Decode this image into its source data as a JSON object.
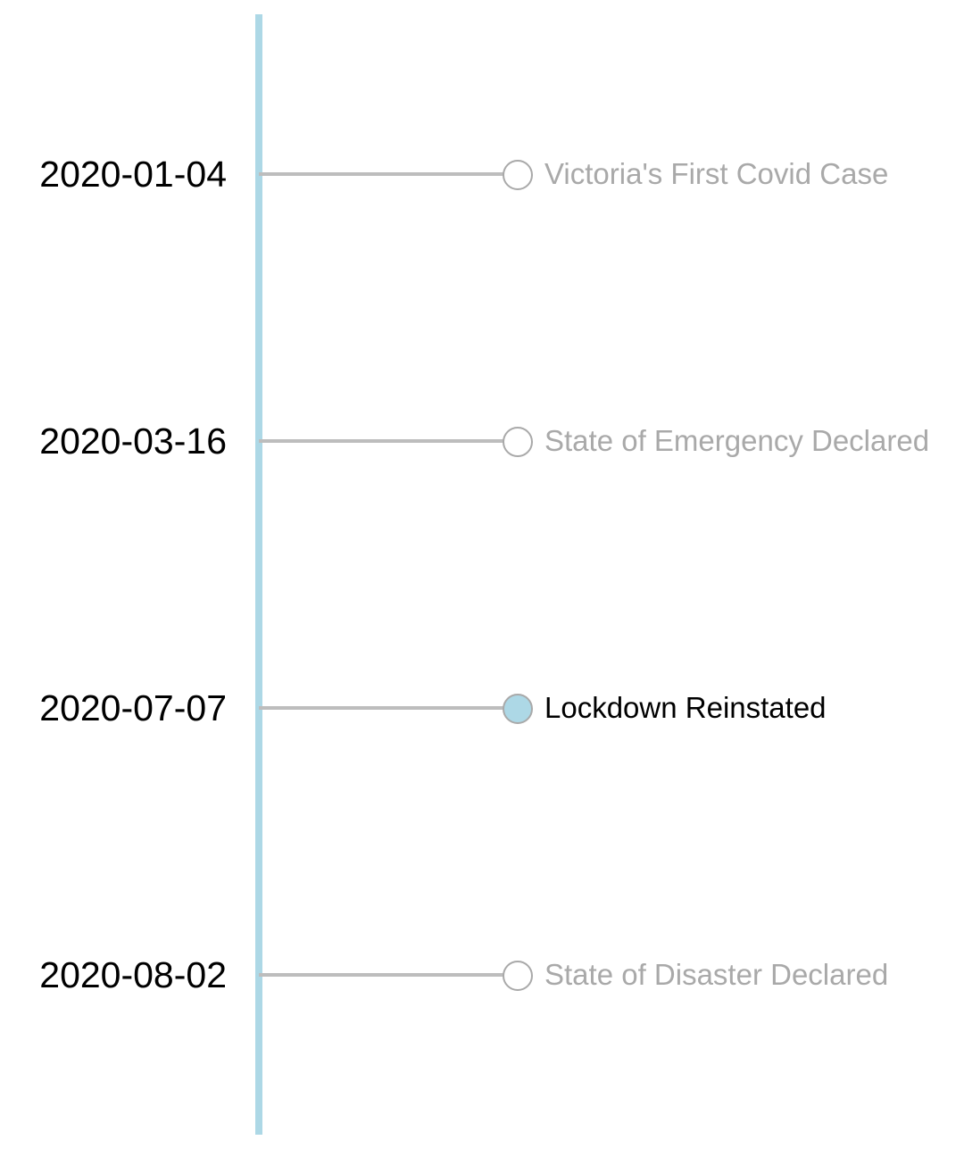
{
  "timeline": {
    "colors": {
      "axis": "#add8e6",
      "connector": "#bdbdbd",
      "marker_border": "#a9a9a9",
      "active_marker_fill": "#add8e6",
      "inactive_label": "#a9a9a9",
      "active_label": "#000000"
    },
    "events": [
      {
        "date": "2020-01-04",
        "label": "Victoria's First Covid Case",
        "active": false
      },
      {
        "date": "2020-03-16",
        "label": "State of Emergency Declared",
        "active": false
      },
      {
        "date": "2020-07-07",
        "label": "Lockdown Reinstated",
        "active": true
      },
      {
        "date": "2020-08-02",
        "label": "State of Disaster Declared",
        "active": false
      }
    ]
  }
}
